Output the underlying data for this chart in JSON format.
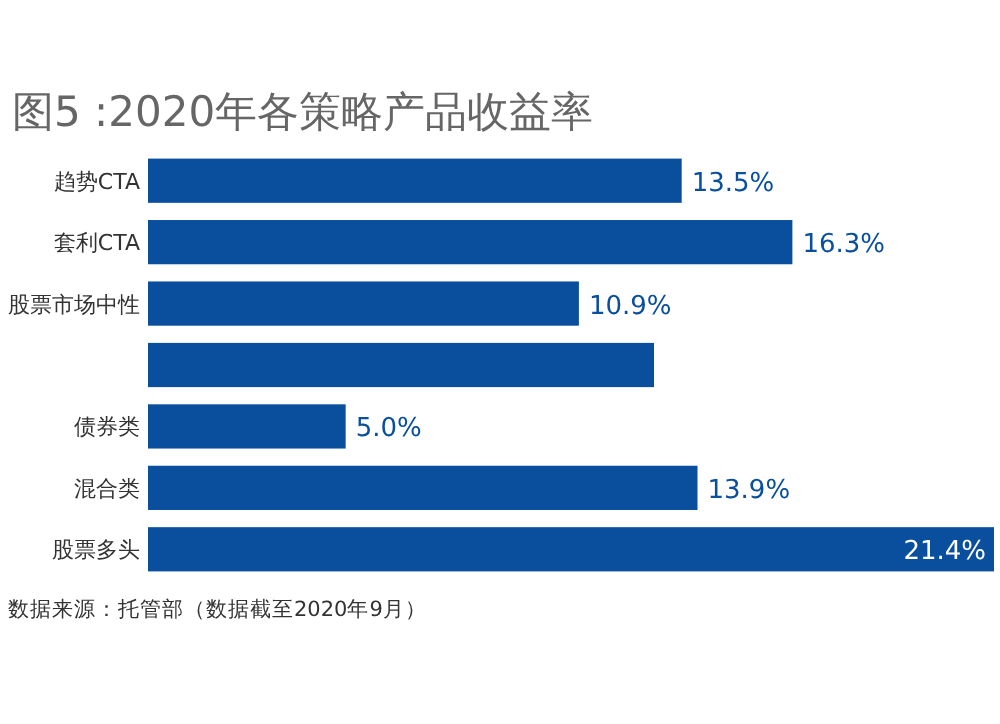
{
  "chart_data": {
    "type": "bar",
    "orientation": "horizontal",
    "title": "图5 :2020年各策略产品收益率",
    "categories": [
      "趋势CTA",
      "套利CTA",
      "股票市场中性",
      null,
      "债券类",
      "混合类",
      "股票多头"
    ],
    "values": [
      13.5,
      16.3,
      10.9,
      12.8,
      5.0,
      13.9,
      21.4
    ],
    "value_labels": [
      "13.5%",
      "16.3%",
      "10.9%",
      null,
      "5.0%",
      "13.9%",
      "21.4%"
    ],
    "color": "#0a4f9e",
    "annotations": [
      "数据来源：托管部（数据截至2020年9月）"
    ]
  }
}
